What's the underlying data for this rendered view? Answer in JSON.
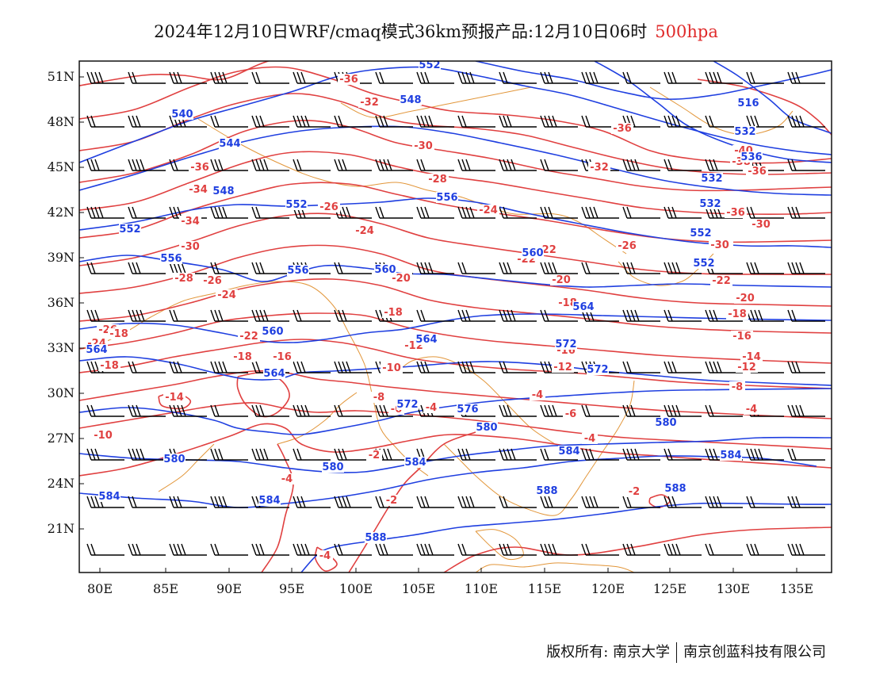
{
  "title": {
    "text": "2024年12月10日WRF/cmaq模式36km预报产品:12月10日06时",
    "level": "500hpa",
    "level_color": "#e02a2a"
  },
  "map": {
    "lon_labels": [
      "80E",
      "85E",
      "90E",
      "95E",
      "100E",
      "105E",
      "110E",
      "115E",
      "120E",
      "125E",
      "130E",
      "135E"
    ],
    "lat_labels": [
      "51N",
      "48N",
      "45N",
      "42N",
      "39N",
      "36N",
      "33N",
      "30N",
      "27N",
      "24N",
      "21N"
    ],
    "colors": {
      "height_contour": "#1f3fe0",
      "temperature_contour": "#e04040",
      "boundary": "#e2963a",
      "wind_barb": "#000000"
    },
    "height_labels": [
      "540",
      "544",
      "548",
      "552",
      "556",
      "560",
      "564",
      "572",
      "576",
      "580",
      "584",
      "588",
      "516",
      "532",
      "536"
    ],
    "temperature_labels": [
      "-36",
      "-34",
      "-32",
      "-30",
      "-28",
      "-26",
      "-24",
      "-22",
      "-20",
      "-18",
      "-16",
      "-14",
      "-12",
      "-10",
      "-8",
      "-6",
      "-4",
      "-2",
      "-40",
      "-38"
    ]
  },
  "footer": {
    "copyright": "版权所有: 南京大学",
    "company": "南京创蓝科技有限公司"
  }
}
